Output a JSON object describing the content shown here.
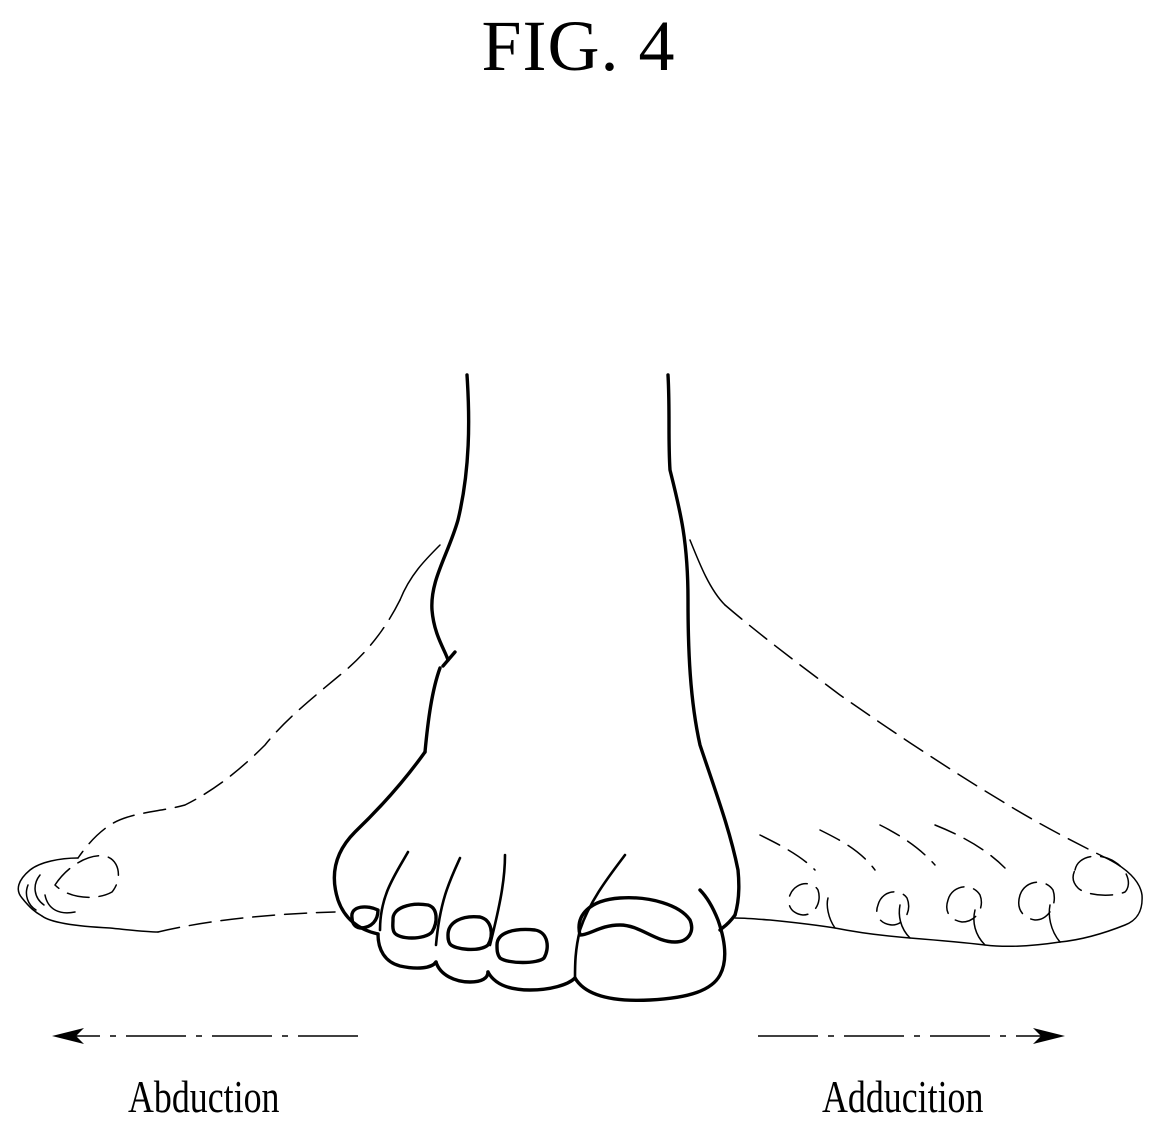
{
  "figure": {
    "title": "FIG. 4"
  },
  "labels": {
    "left": "Abduction",
    "right": "Adducition"
  },
  "icons": {
    "left_arrow": "arrow-left-icon",
    "right_arrow": "arrow-right-icon"
  }
}
